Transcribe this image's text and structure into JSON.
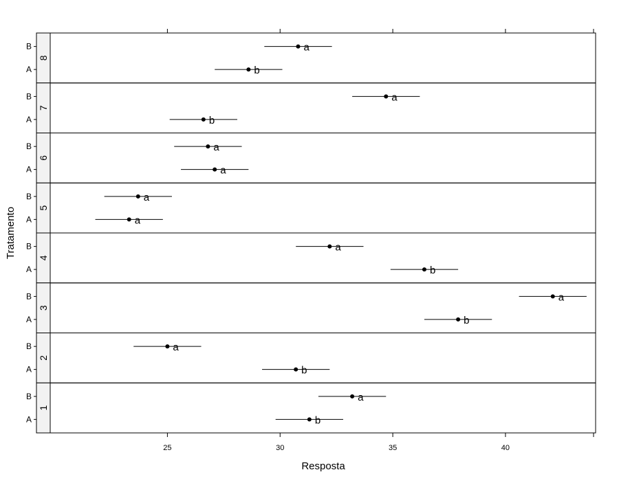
{
  "chart_data": {
    "type": "dotplot",
    "xlabel": "Resposta",
    "ylabel": "Tratamento",
    "xlim": [
      19.8,
      44.0
    ],
    "x_ticks": [
      25,
      30,
      35,
      40
    ],
    "categories": [
      "A",
      "B"
    ],
    "panels": [
      {
        "name": "8",
        "points": [
          {
            "category": "B",
            "value": 30.8,
            "lower": 29.3,
            "upper": 32.3,
            "letter": "a"
          },
          {
            "category": "A",
            "value": 28.6,
            "lower": 27.1,
            "upper": 30.1,
            "letter": "b"
          }
        ]
      },
      {
        "name": "7",
        "points": [
          {
            "category": "B",
            "value": 34.7,
            "lower": 33.2,
            "upper": 36.2,
            "letter": "a"
          },
          {
            "category": "A",
            "value": 26.6,
            "lower": 25.1,
            "upper": 28.1,
            "letter": "b"
          }
        ]
      },
      {
        "name": "6",
        "points": [
          {
            "category": "B",
            "value": 26.8,
            "lower": 25.3,
            "upper": 28.3,
            "letter": "a"
          },
          {
            "category": "A",
            "value": 27.1,
            "lower": 25.6,
            "upper": 28.6,
            "letter": "a"
          }
        ]
      },
      {
        "name": "5",
        "points": [
          {
            "category": "B",
            "value": 23.7,
            "lower": 22.2,
            "upper": 25.2,
            "letter": "a"
          },
          {
            "category": "A",
            "value": 23.3,
            "lower": 21.8,
            "upper": 24.8,
            "letter": "a"
          }
        ]
      },
      {
        "name": "4",
        "points": [
          {
            "category": "B",
            "value": 32.2,
            "lower": 30.7,
            "upper": 33.7,
            "letter": "a"
          },
          {
            "category": "A",
            "value": 36.4,
            "lower": 34.9,
            "upper": 37.9,
            "letter": "b"
          }
        ]
      },
      {
        "name": "3",
        "points": [
          {
            "category": "B",
            "value": 42.1,
            "lower": 40.6,
            "upper": 43.6,
            "letter": "a"
          },
          {
            "category": "A",
            "value": 37.9,
            "lower": 36.4,
            "upper": 39.4,
            "letter": "b"
          }
        ]
      },
      {
        "name": "2",
        "points": [
          {
            "category": "B",
            "value": 25.0,
            "lower": 23.5,
            "upper": 26.5,
            "letter": "a"
          },
          {
            "category": "A",
            "value": 30.7,
            "lower": 29.2,
            "upper": 32.2,
            "letter": "b"
          }
        ]
      },
      {
        "name": "1",
        "points": [
          {
            "category": "B",
            "value": 33.2,
            "lower": 31.7,
            "upper": 34.7,
            "letter": "a"
          },
          {
            "category": "A",
            "value": 31.3,
            "lower": 29.8,
            "upper": 32.8,
            "letter": "b"
          }
        ]
      }
    ],
    "grid": false,
    "legend": "none",
    "colors": {
      "mark": "#000000",
      "line": "#000000",
      "strip": "#f2f2f2",
      "border": "#000000"
    }
  }
}
